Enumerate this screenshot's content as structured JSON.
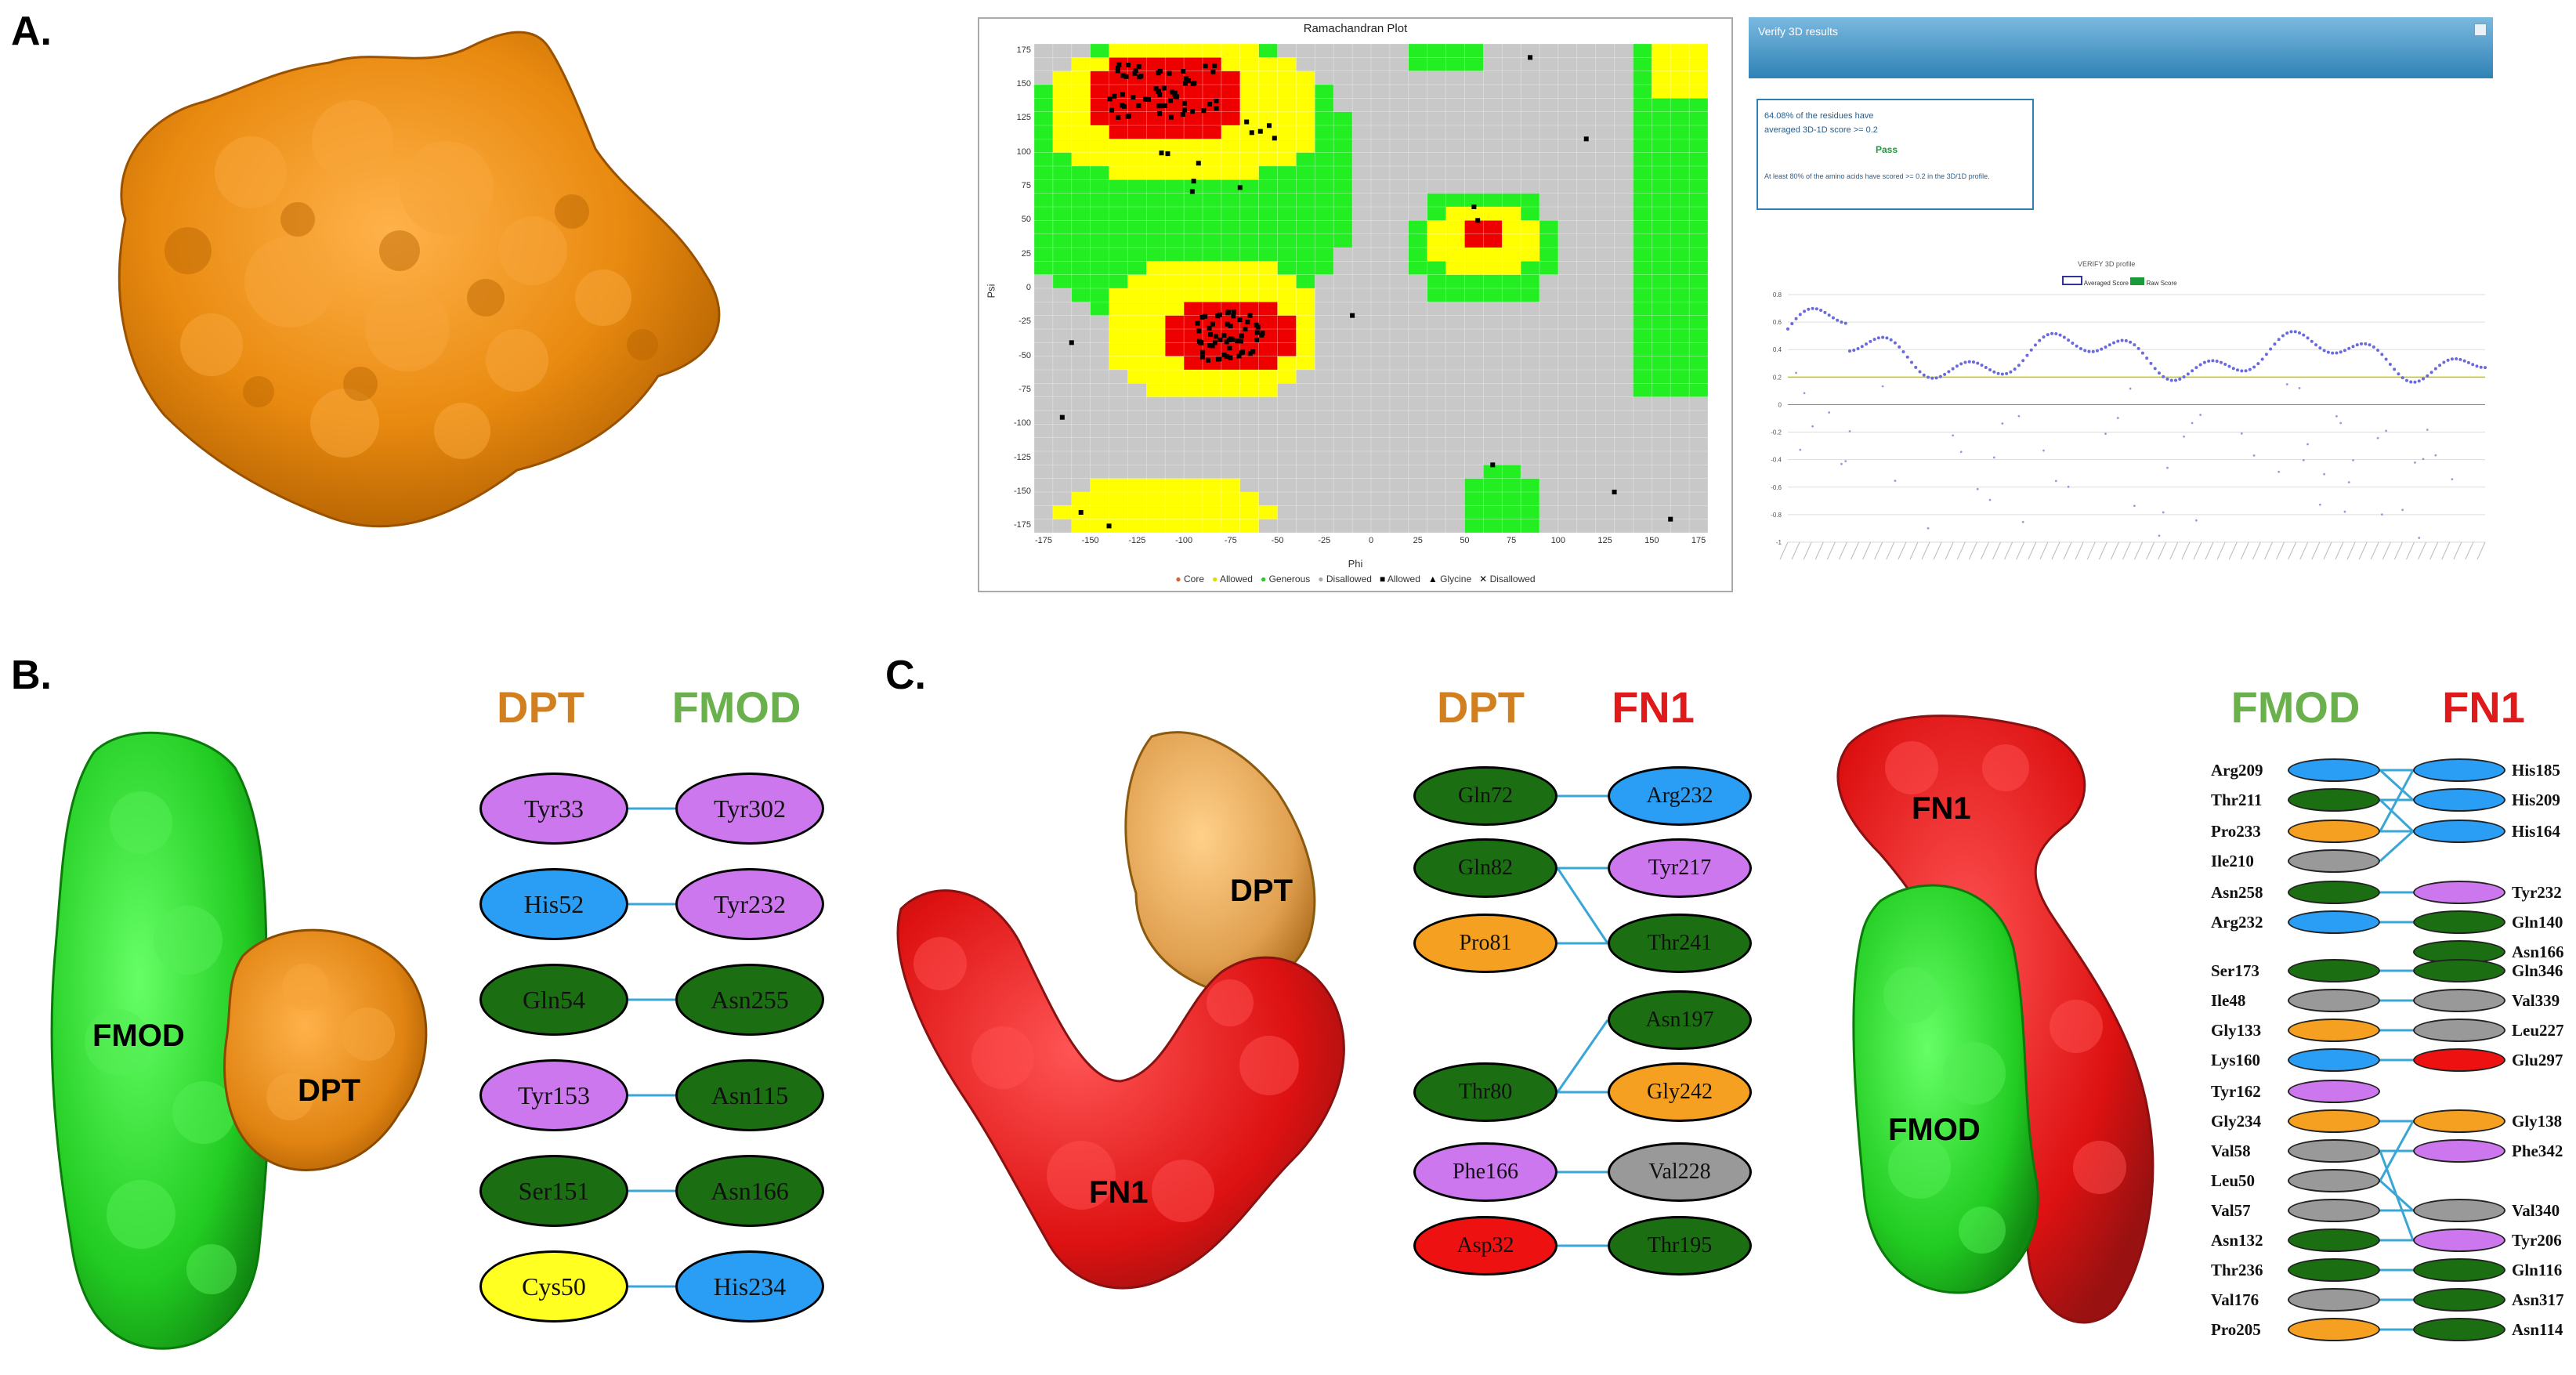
{
  "panels": {
    "a": "A.",
    "b": "B.",
    "c": "C."
  },
  "ramachandran": {
    "title": "Ramachandran Plot",
    "xlabel": "Phi",
    "ylabel": "Psi",
    "xticks": [
      "-175",
      "-150",
      "-125",
      "-100",
      "-75",
      "-50",
      "-25",
      "0",
      "25",
      "50",
      "75",
      "100",
      "125",
      "150",
      "175"
    ],
    "yticks": [
      "175",
      "150",
      "125",
      "100",
      "75",
      "50",
      "25",
      "0",
      "-25",
      "-50",
      "-75",
      "-100",
      "-125",
      "-150",
      "-175"
    ],
    "legend": [
      "Core",
      "Allowed",
      "Generous",
      "Disallowed",
      "Allowed",
      "Glycine",
      "Disallowed"
    ],
    "colors": {
      "core": "#ee0000",
      "allowed": "#ffff00",
      "generous": "#22ee22",
      "disallowed": "#c8c8c8"
    }
  },
  "verify3d": {
    "header": "Verify 3D results",
    "line1": "64.08% of the residues have",
    "line2": "averaged 3D-1D score >= 0.2",
    "pass": "Pass",
    "line3": "At least 80% of the amino acids have scored >= 0.2 in the 3D/1D profile.",
    "chart_title": "VERIFY 3D profile",
    "legend": [
      "Averaged Score",
      "Raw Score"
    ],
    "yticks": [
      "0.8",
      "0.6",
      "0.4",
      "0.2",
      "0",
      "-0.2",
      "-0.4",
      "-0.6",
      "-0.8",
      "-1"
    ]
  },
  "panelB": {
    "label_left": "DPT",
    "label_right": "FMOD",
    "mol_labels": [
      "FMOD",
      "DPT"
    ],
    "pairs": [
      {
        "left": "Tyr33",
        "right": "Tyr302"
      },
      {
        "left": "His52",
        "right": "Tyr232"
      },
      {
        "left": "Gln54",
        "right": "Asn255"
      },
      {
        "left": "Tyr153",
        "right": "Asn115"
      },
      {
        "left": "Ser151",
        "right": "Asn166"
      },
      {
        "left": "Cys50",
        "right": "His234"
      }
    ],
    "left_colors": [
      "#cc77ee",
      "#2a9df4",
      "#1b6e12",
      "#cc77ee",
      "#1b6e12",
      "#ffff22"
    ],
    "right_colors": [
      "#cc77ee",
      "#cc77ee",
      "#1b6e12",
      "#1b6e12",
      "#1b6e12",
      "#2a9df4"
    ]
  },
  "panelC": {
    "label_left": "DPT",
    "label_right": "FN1",
    "mol_labels": [
      "DPT",
      "FN1"
    ],
    "left": [
      "Gln72",
      "Gln82",
      "Pro81",
      "Thr80",
      "Phe166",
      "Asp32"
    ],
    "left_colors": [
      "#1b6e12",
      "#1b6e12",
      "#f5a020",
      "#1b6e12",
      "#cc77ee",
      "#ee1111"
    ],
    "right": [
      "Arg232",
      "Tyr217",
      "Thr241",
      "Asn197",
      "Gly242",
      "Val228",
      "Thr195"
    ],
    "right_colors": [
      "#2a9df4",
      "#cc77ee",
      "#1b6e12",
      "#1b6e12",
      "#f5a020",
      "#999999",
      "#1b6e12"
    ]
  },
  "panelD": {
    "label_left": "FMOD",
    "label_right": "FN1",
    "mol_labels": [
      "FN1",
      "FMOD"
    ],
    "left": [
      "Arg209",
      "Thr211",
      "Pro233",
      "Ile210",
      "Asn258",
      "Arg232",
      "Ser173",
      "Ile48",
      "Gly133",
      "Lys160",
      "Tyr162",
      "Gly234",
      "Val58",
      "Leu50",
      "Val57",
      "Asn132",
      "Thr236",
      "Val176",
      "Pro205"
    ],
    "left_colors": [
      "#2a9df4",
      "#1b6e12",
      "#f5a020",
      "#999999",
      "#1b6e12",
      "#2a9df4",
      "#1b6e12",
      "#999999",
      "#f5a020",
      "#2a9df4",
      "#cc77ee",
      "#f5a020",
      "#999999",
      "#999999",
      "#999999",
      "#1b6e12",
      "#1b6e12",
      "#999999",
      "#f5a020"
    ],
    "right": [
      "His185",
      "His209",
      "His164",
      "Tyr232",
      "Gln140",
      "Asn166",
      "Gln346",
      "Val339",
      "Leu227",
      "Glu297",
      "Gly138",
      "Phe342",
      "Val340",
      "Tyr206",
      "Gln116",
      "Asn317",
      "Asn114"
    ],
    "right_colors": [
      "#2a9df4",
      "#2a9df4",
      "#2a9df4",
      "#cc77ee",
      "#1b6e12",
      "#1b6e12",
      "#1b6e12",
      "#999999",
      "#999999",
      "#ee1111",
      "#f5a020",
      "#cc77ee",
      "#999999",
      "#cc77ee",
      "#1b6e12",
      "#1b6e12",
      "#1b6e12"
    ]
  }
}
